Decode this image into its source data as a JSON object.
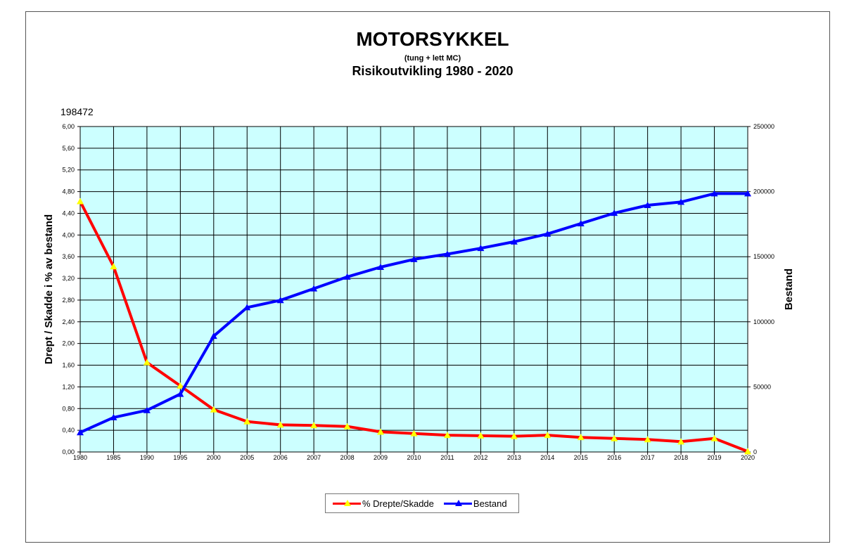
{
  "chart_data": {
    "type": "line",
    "title": "MOTORSYKKEL",
    "subtitle": "(tung + lett MC)",
    "subtitle2": "Risikoutvikling 1980 - 2020",
    "corner_value": "198472",
    "categories": [
      "1980",
      "1985",
      "1990",
      "1995",
      "2000",
      "2005",
      "2006",
      "2007",
      "2008",
      "2009",
      "2010",
      "2011",
      "2012",
      "2013",
      "2014",
      "2015",
      "2016",
      "2017",
      "2018",
      "2019",
      "2020"
    ],
    "y_left": {
      "label": "Drept / Skadde i % av bestand",
      "range": [
        0,
        6
      ],
      "ticks": [
        "0,00",
        "0,40",
        "0,80",
        "1,20",
        "1,60",
        "2,00",
        "2,40",
        "2,80",
        "3,20",
        "3,60",
        "4,00",
        "4,40",
        "4,80",
        "5,20",
        "5,60",
        "6,00"
      ]
    },
    "y_right": {
      "label": "Bestand",
      "range": [
        0,
        250000
      ],
      "ticks": [
        "0",
        "50000",
        "100000",
        "150000",
        "200000",
        "250000"
      ]
    },
    "grid": true,
    "plot_background": "#ccffff",
    "legend_position": "bottom",
    "series": [
      {
        "name": "% Drepte/Skadde",
        "axis": "left",
        "color": "#ff0000",
        "marker_color": "#ffff00",
        "values": [
          4.62,
          3.42,
          1.65,
          1.22,
          0.78,
          0.56,
          0.5,
          0.49,
          0.47,
          0.37,
          0.34,
          0.31,
          0.3,
          0.29,
          0.31,
          0.27,
          0.25,
          0.23,
          0.19,
          0.25,
          0.01
        ]
      },
      {
        "name": "Bestand",
        "axis": "right",
        "color": "#0000ff",
        "marker_color": "#0000ff",
        "values": [
          15000,
          26500,
          32000,
          44500,
          89000,
          111000,
          116500,
          125500,
          134500,
          142000,
          148000,
          152000,
          156500,
          161500,
          167500,
          175500,
          183500,
          189500,
          192000,
          198500,
          198472
        ]
      }
    ]
  }
}
